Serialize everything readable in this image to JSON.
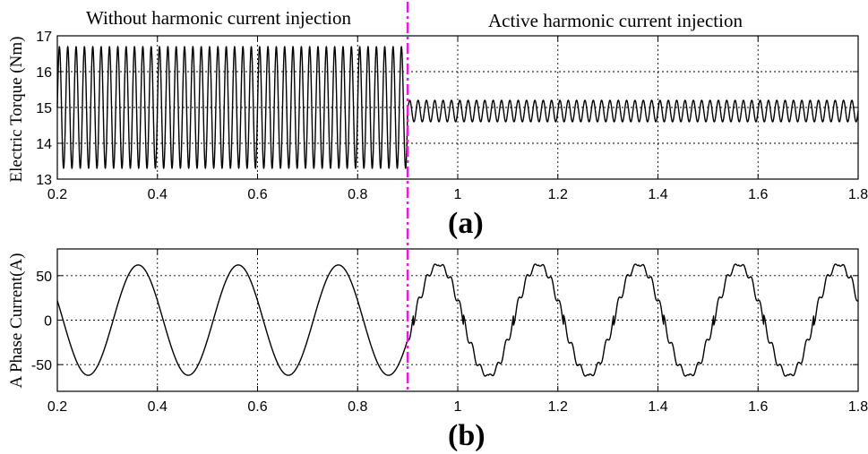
{
  "chart_data": [
    {
      "id": "a",
      "type": "line",
      "panel_label": "(a)",
      "ylabel": "Electric Torque (Nm)",
      "xlim": [
        0.2,
        1.8
      ],
      "ylim": [
        13,
        17
      ],
      "xticks": [
        "0.2",
        "0.4",
        "0.6",
        "0.8",
        "1",
        "1.2",
        "1.4",
        "1.6",
        "1.8"
      ],
      "yticks": [
        "13",
        "14",
        "15",
        "16",
        "17"
      ],
      "grid": true,
      "annotations": [
        "Without harmonic current injection",
        "Active harmonic current injection"
      ],
      "switch_time": 0.9,
      "series": [
        {
          "segments": [
            {
              "x_range": [
                0.2,
                0.9
              ],
              "mean": 15.0,
              "amplitude": 1.7,
              "frequency": 60
            },
            {
              "x_range": [
                0.9,
                1.8
              ],
              "mean": 14.9,
              "amplitude": 0.3,
              "frequency": 60
            }
          ]
        }
      ]
    },
    {
      "id": "b",
      "type": "line",
      "panel_label": "(b)",
      "ylabel": "A Phase Current(A)",
      "xlim": [
        0.2,
        1.8
      ],
      "ylim": [
        -80,
        80
      ],
      "xticks": [
        "0.2",
        "0.4",
        "0.6",
        "0.8",
        "1",
        "1.2",
        "1.4",
        "1.6",
        "1.8"
      ],
      "yticks": [
        "-50",
        "0",
        "50"
      ],
      "grid": true,
      "switch_time": 0.9,
      "series": [
        {
          "segments": [
            {
              "x_range": [
                0.2,
                0.9
              ],
              "amplitude": 62,
              "frequency": 5,
              "phase_at_x0": 0.2,
              "x0": 0.2
            },
            {
              "x_range": [
                0.9,
                1.8
              ],
              "amplitude": 62,
              "frequency": 5,
              "ripple_amplitude": 6,
              "ripple_frequency": 60
            }
          ]
        }
      ]
    }
  ]
}
